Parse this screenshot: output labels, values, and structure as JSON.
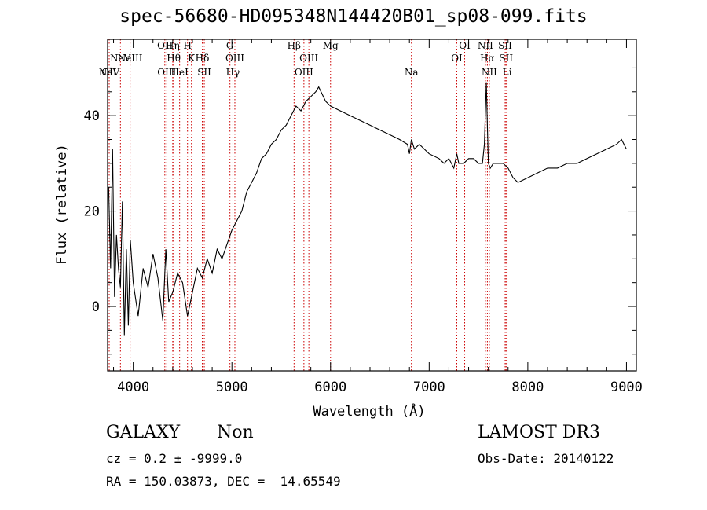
{
  "chart_data": {
    "type": "line",
    "title": "spec-56680-HD095348N144420B01_sp08-099.fits",
    "xlabel": "Wavelength (Å)",
    "ylabel": "Flux (relative)",
    "xlim": [
      3740,
      9100
    ],
    "ylim": [
      -13.5,
      56
    ],
    "x_ticks": [
      4000,
      5000,
      6000,
      7000,
      8000,
      9000
    ],
    "x_tick_labels": [
      "4000",
      "5000",
      "6000",
      "7000",
      "8000",
      "9000"
    ],
    "y_ticks": [
      0,
      20,
      40
    ],
    "y_tick_labels": [
      "0",
      "20",
      "40"
    ],
    "grid": false,
    "line_color": "#000000",
    "marker_color": "#cc0000",
    "series": [
      {
        "name": "flux",
        "x": [
          3750,
          3770,
          3790,
          3810,
          3830,
          3850,
          3870,
          3890,
          3910,
          3930,
          3950,
          3970,
          4000,
          4050,
          4100,
          4150,
          4200,
          4250,
          4300,
          4330,
          4360,
          4400,
          4450,
          4500,
          4550,
          4600,
          4650,
          4700,
          4750,
          4800,
          4850,
          4900,
          4950,
          5000,
          5050,
          5100,
          5150,
          5200,
          5250,
          5300,
          5350,
          5400,
          5450,
          5500,
          5550,
          5600,
          5650,
          5700,
          5750,
          5800,
          5850,
          5880,
          5950,
          6000,
          6100,
          6200,
          6300,
          6400,
          6500,
          6600,
          6700,
          6780,
          6800,
          6820,
          6850,
          6900,
          7000,
          7100,
          7150,
          7200,
          7250,
          7280,
          7300,
          7350,
          7400,
          7450,
          7500,
          7540,
          7560,
          7580,
          7590,
          7600,
          7620,
          7650,
          7700,
          7750,
          7800,
          7850,
          7900,
          8000,
          8100,
          8200,
          8300,
          8400,
          8500,
          8600,
          8700,
          8800,
          8900,
          8950,
          9000
        ],
        "values": [
          25,
          8,
          33,
          2,
          15,
          8,
          4,
          22,
          -6,
          12,
          -4,
          14,
          5,
          -2,
          8,
          4,
          11,
          6,
          -3,
          12,
          1,
          3,
          7,
          5,
          -2,
          3,
          8,
          6,
          10,
          7,
          12,
          10,
          13,
          16,
          18,
          20,
          24,
          26,
          28,
          31,
          32,
          34,
          35,
          37,
          38,
          40,
          42,
          41,
          43,
          44,
          45,
          46,
          43,
          42,
          41,
          40,
          39,
          38,
          37,
          36,
          35,
          34,
          32,
          35,
          33,
          34,
          32,
          31,
          30,
          31,
          29,
          32,
          30,
          30,
          31,
          31,
          30,
          30,
          34,
          47,
          38,
          30,
          29,
          30,
          30,
          30,
          29,
          27,
          26,
          27,
          28,
          29,
          29,
          30,
          30,
          31,
          32,
          33,
          34,
          35,
          33
        ]
      }
    ],
    "lines": [
      {
        "label": "NeV",
        "x": 3426,
        "row": 3
      },
      {
        "label": "OII",
        "x": 3727,
        "row": 3
      },
      {
        "label": "NeV",
        "x": 3870,
        "row": 2
      },
      {
        "label": "NeIII",
        "x": 3968,
        "row": 2
      },
      {
        "label": "OII",
        "x": 4320,
        "row": 1
      },
      {
        "label": "OIII",
        "x": 4340,
        "row": 3
      },
      {
        "label": "Hη",
        "x": 4400,
        "row": 1
      },
      {
        "label": "Hθ",
        "x": 4410,
        "row": 2
      },
      {
        "label": "HeI",
        "x": 4470,
        "row": 3
      },
      {
        "label": "H",
        "x": 4550,
        "row": 1
      },
      {
        "label": "K",
        "x": 4590,
        "row": 2
      },
      {
        "label": "Hδ",
        "x": 4700,
        "row": 2
      },
      {
        "label": "SII",
        "x": 4720,
        "row": 3
      },
      {
        "label": "G",
        "x": 4980,
        "row": 1
      },
      {
        "label": "OIII",
        "x": 5030,
        "row": 2
      },
      {
        "label": "Hγ",
        "x": 5010,
        "row": 3
      },
      {
        "label": "Hβ",
        "x": 5630,
        "row": 1
      },
      {
        "label": "OIII",
        "x": 5730,
        "row": 3
      },
      {
        "label": "OIII",
        "x": 5780,
        "row": 2
      },
      {
        "label": "Mg",
        "x": 6000,
        "row": 1
      },
      {
        "label": "Na",
        "x": 6820,
        "row": 3
      },
      {
        "label": "OI",
        "x": 7280,
        "row": 2
      },
      {
        "label": "OI",
        "x": 7360,
        "row": 1
      },
      {
        "label": "NII",
        "x": 7570,
        "row": 1
      },
      {
        "label": "Hα",
        "x": 7590,
        "row": 2
      },
      {
        "label": "NII",
        "x": 7610,
        "row": 3
      },
      {
        "label": "SII",
        "x": 7770,
        "row": 1
      },
      {
        "label": "SII",
        "x": 7780,
        "row": 2
      },
      {
        "label": "Li",
        "x": 7790,
        "row": 3
      }
    ]
  },
  "info": {
    "class": "GALAXY",
    "subclass": "Non",
    "survey": "LAMOST DR3",
    "cz": "cz = 0.2 ± -9999.0",
    "obs_date": "Obs-Date: 20140122",
    "coords": "RA = 150.03873, DEC =  14.65549"
  }
}
